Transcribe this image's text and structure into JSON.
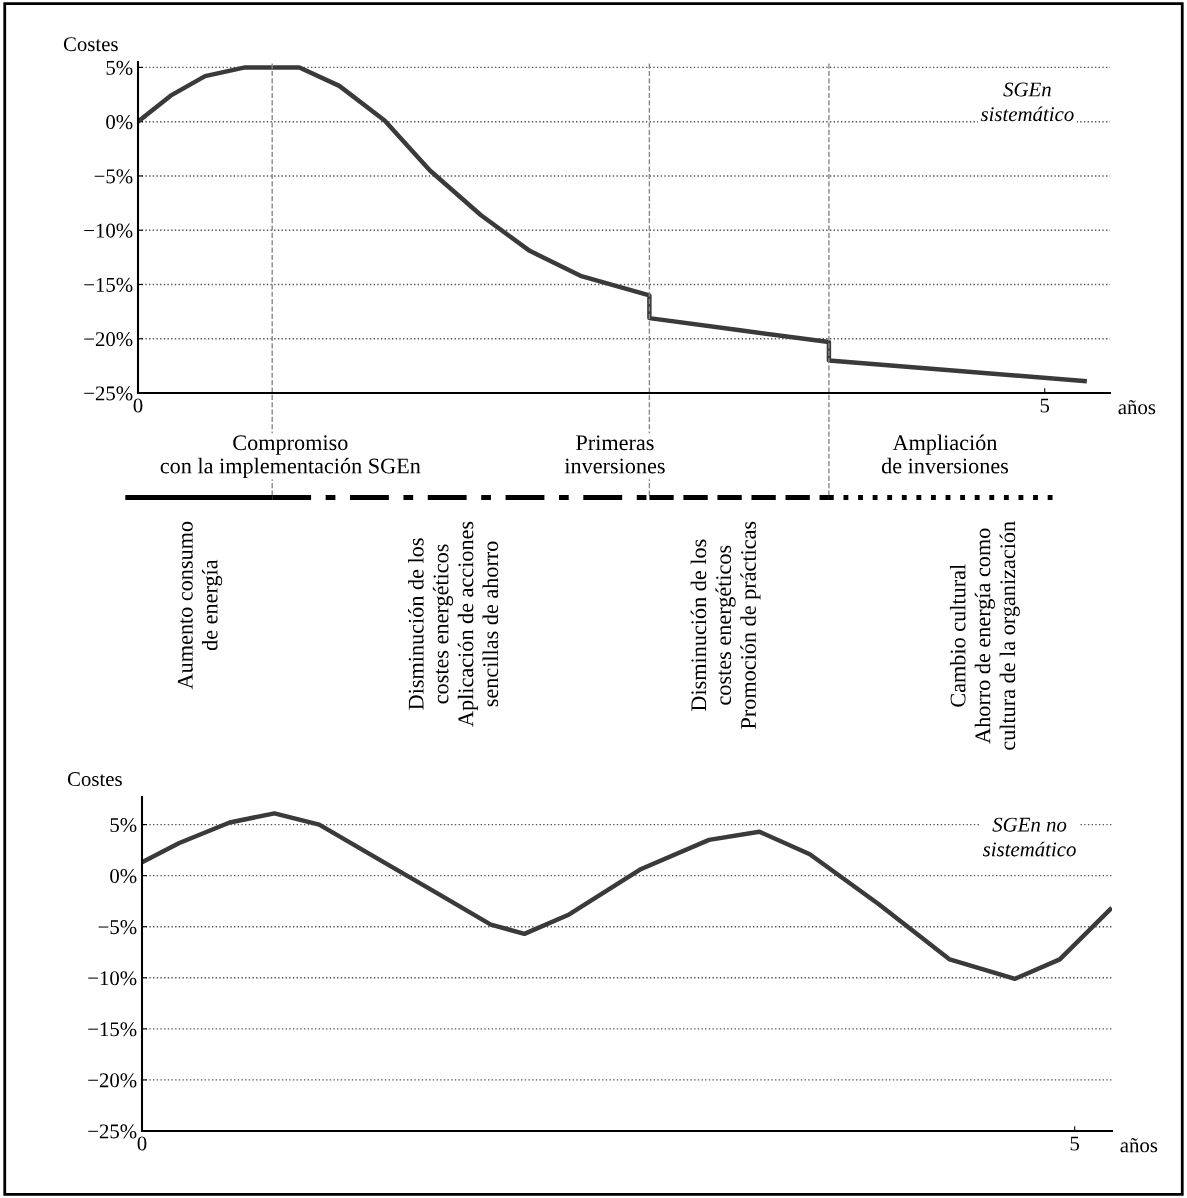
{
  "chart_data": [
    {
      "type": "line",
      "ylabel": "Costes",
      "xlabel": "años",
      "xlim": [
        0,
        5.36
      ],
      "ylim": [
        -25,
        5.5
      ],
      "xticks": [
        0,
        5
      ],
      "yticks": [
        {
          "value": 5,
          "label": "5%"
        },
        {
          "value": 0,
          "label": "0%"
        },
        {
          "value": -5,
          "label": "−5%"
        },
        {
          "value": -10,
          "label": "−10%"
        },
        {
          "value": -15,
          "label": "−15%"
        },
        {
          "value": -20,
          "label": "−20%"
        },
        {
          "value": -25,
          "label": "−25%"
        }
      ],
      "grid": "y",
      "line_style": "solid",
      "marker": "none",
      "series": [
        {
          "color": "#3a3a3a",
          "x": [
            0,
            0.18,
            0.37,
            0.59,
            0.89,
            1.11,
            1.36,
            1.61,
            1.89,
            2.16,
            2.44,
            2.82,
            2.82,
            3.31,
            3.81,
            3.81,
            5.22
          ],
          "values": [
            0,
            2.4,
            4.2,
            5,
            5,
            3.3,
            0.1,
            -4.5,
            -8.6,
            -11.9,
            -14.2,
            -16,
            -18.1,
            -19.2,
            -20.3,
            -22,
            -23.9
          ]
        }
      ],
      "ref_lines": [
        {
          "axis": "x",
          "value": 0.74,
          "line_style": "dashed",
          "color": "#888888"
        },
        {
          "axis": "x",
          "value": 2.82,
          "line_style": "dashed",
          "color": "#888888"
        },
        {
          "axis": "x",
          "value": 3.81,
          "line_style": "dashed",
          "color": "#888888"
        }
      ],
      "annotations": [
        "SGEn\nsistemático"
      ]
    },
    {
      "type": "other",
      "annotations": [
        "Compromiso\ncon la implementación SGEn",
        "Primeras\ninversiones",
        "Ampliación\nde inversiones",
        "Aumento consumo\nde energía",
        "Disminución de los\ncostes energéticos\nAplicación de acciones\nsencillas de ahorro",
        "Disminución de los\ncostes energéticos\nPromoción de prácticas",
        "Cambio cultural\nAhorro de energía como\ncultura de la organización"
      ]
    },
    {
      "type": "line",
      "ylabel": "Costes",
      "xlabel": "años",
      "xlim": [
        0,
        5.2
      ],
      "ylim": [
        -25,
        7.7
      ],
      "xticks": [
        0,
        5
      ],
      "yticks": [
        {
          "value": 5,
          "label": "5%"
        },
        {
          "value": 0,
          "label": "0%"
        },
        {
          "value": -5,
          "label": "−5%"
        },
        {
          "value": -10,
          "label": "−10%"
        },
        {
          "value": -15,
          "label": "−15%"
        },
        {
          "value": -20,
          "label": "−20%"
        },
        {
          "value": -25,
          "label": "−25%"
        }
      ],
      "grid": "y",
      "line_style": "solid",
      "marker": "none",
      "series": [
        {
          "color": "#3a3a3a",
          "x": [
            0,
            0.2,
            0.47,
            0.71,
            0.95,
            1.27,
            1.6,
            1.87,
            2.05,
            2.29,
            2.67,
            3.04,
            3.31,
            3.58,
            3.95,
            4.33,
            4.68,
            4.92,
            5.19
          ],
          "values": [
            1.3,
            3.2,
            5.2,
            6.1,
            5,
            1.6,
            -1.9,
            -4.8,
            -5.7,
            -3.8,
            0.6,
            3.5,
            4.3,
            2.1,
            -2.8,
            -8.2,
            -10.1,
            -8.2,
            -3.3
          ]
        }
      ],
      "annotations": [
        "SGEn no\nsistemático"
      ]
    }
  ]
}
